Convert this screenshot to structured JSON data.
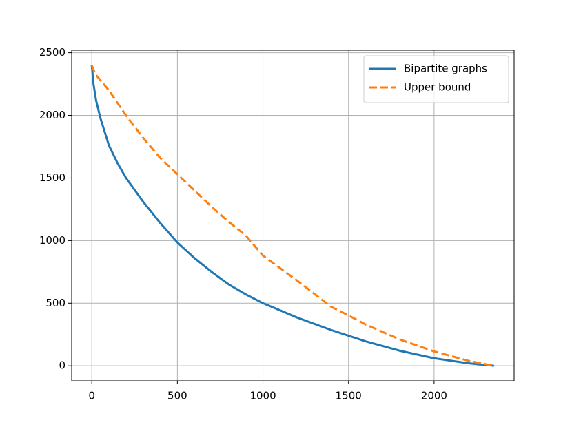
{
  "chart_data": {
    "type": "line",
    "series": [
      {
        "name": "Bipartite graphs",
        "color": "#1f77b4",
        "dash": false,
        "x": [
          0,
          10,
          25,
          50,
          100,
          150,
          200,
          300,
          400,
          500,
          600,
          700,
          800,
          900,
          1000,
          1200,
          1400,
          1500,
          1600,
          1800,
          2000,
          2200,
          2350
        ],
        "values": [
          2400,
          2250,
          2120,
          1980,
          1760,
          1620,
          1500,
          1310,
          1140,
          985,
          860,
          750,
          650,
          570,
          500,
          385,
          285,
          240,
          195,
          120,
          60,
          20,
          0
        ]
      },
      {
        "name": "Upper bound",
        "color": "#ff7f0e",
        "dash": true,
        "x": [
          0,
          20,
          100,
          200,
          300,
          400,
          500,
          600,
          700,
          800,
          900,
          1000,
          1200,
          1400,
          1500,
          1600,
          1800,
          2000,
          2200,
          2350
        ],
        "values": [
          2400,
          2330,
          2200,
          2000,
          1820,
          1660,
          1530,
          1400,
          1270,
          1150,
          1040,
          880,
          680,
          470,
          402,
          330,
          210,
          115,
          40,
          0
        ]
      }
    ],
    "xlim": [
      -117.5,
      2467.5
    ],
    "xticks": [
      0,
      500,
      1000,
      1500,
      2000
    ],
    "ylim": [
      -120,
      2520
    ],
    "yticks": [
      0,
      500,
      1000,
      1500,
      2000,
      2500
    ],
    "grid": true,
    "legend": "upper right"
  }
}
